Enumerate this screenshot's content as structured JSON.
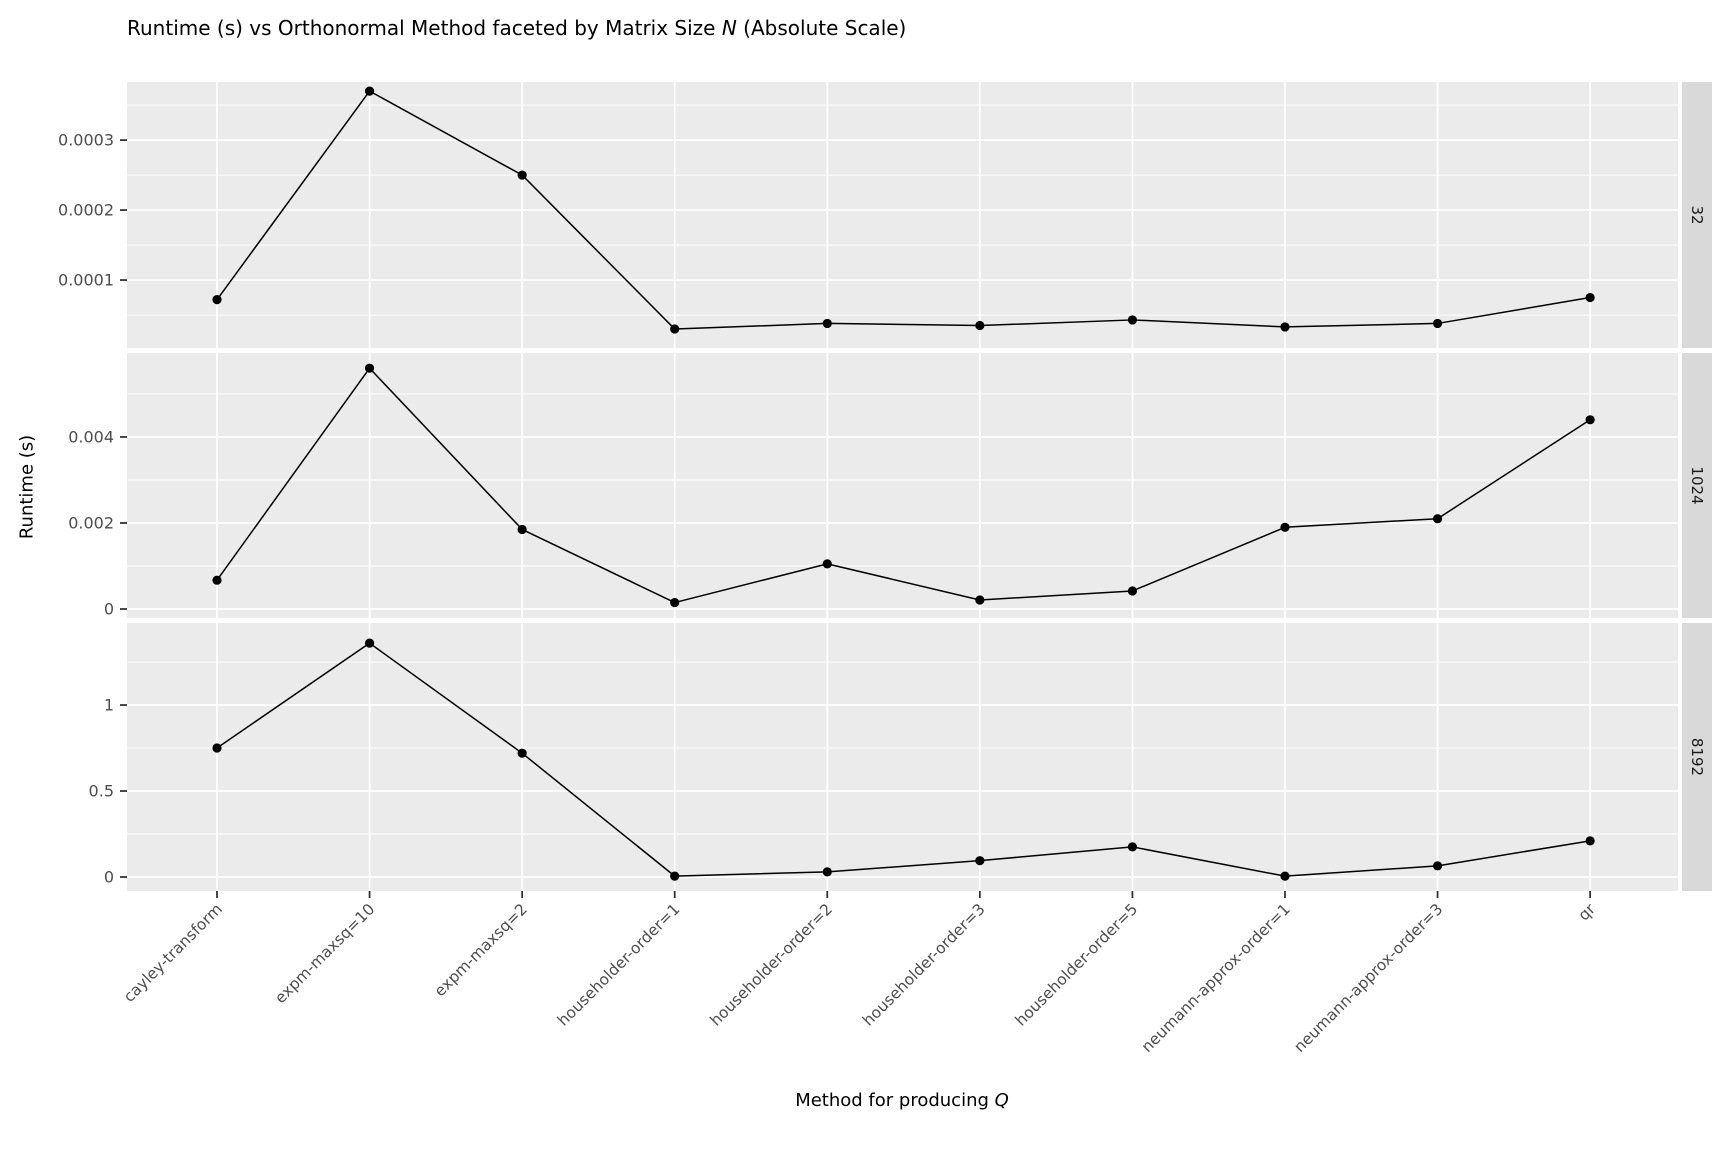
{
  "title": {
    "prefix": "Runtime (s) vs Orthonormal Method faceted by Matrix Size ",
    "italic": "N",
    "suffix": " (Absolute Scale)"
  },
  "axes": {
    "y_label": "Runtime (s)",
    "x_label_prefix": "Method for producing ",
    "x_label_italic": "Q"
  },
  "colors": {
    "panel_background": "#EBEBEB",
    "strip_background": "#D9D9D9",
    "gridline": "#FFFFFF",
    "line": "#000000",
    "point": "#000000",
    "tick_label": "#4D4D4D",
    "tick_mark": "#333333",
    "strip_text": "#1A1A1A",
    "title_text": "#000000"
  },
  "chart_data": {
    "type": "line",
    "title": "Runtime (s) vs Orthonormal Method faceted by Matrix Size N (Absolute Scale)",
    "xlabel": "Method for producing Q",
    "ylabel": "Runtime (s)",
    "legend": false,
    "grid": true,
    "facet_variable": "Matrix Size N",
    "categories": [
      "cayley-transform",
      "expm-maxsq=10",
      "expm-maxsq=2",
      "householder-order=1",
      "householder-order=2",
      "householder-order=3",
      "householder-order=5",
      "neumann-approx-order=1",
      "neumann-approx-order=3",
      "qr"
    ],
    "facets": [
      {
        "label": "32",
        "ylim": [
          2.9e-06,
          0.000383
        ],
        "yticks": [
          0.0001,
          0.0002,
          0.0003
        ],
        "ytick_labels": [
          "0.0001",
          "0.0002",
          "0.0003"
        ],
        "minor_ticks": [
          5e-05,
          0.00015,
          0.00025,
          0.00035
        ],
        "values": [
          7.2e-05,
          0.00037,
          0.00025,
          3e-05,
          3.8e-05,
          3.5e-05,
          4.3e-05,
          3.3e-05,
          3.8e-05,
          7.5e-05
        ]
      },
      {
        "label": "1024",
        "ylim": [
          -0.000209,
          0.005953
        ],
        "yticks": [
          0,
          0.002,
          0.004
        ],
        "ytick_labels": [
          "0",
          "0.002",
          "0.004"
        ],
        "minor_ticks": [
          0.001,
          0.003,
          0.005
        ],
        "values": [
          0.00067,
          0.0056,
          0.00185,
          0.00015,
          0.00105,
          0.00021,
          0.00042,
          0.0019,
          0.0021,
          0.0044
        ]
      },
      {
        "label": "8192",
        "ylim": [
          -0.0814,
          1.477
        ],
        "yticks": [
          0,
          0.5,
          1
        ],
        "ytick_labels": [
          "0",
          "0.5",
          "1"
        ],
        "minor_ticks": [
          0.25,
          0.75,
          1.25
        ],
        "values": [
          0.75,
          1.36,
          0.72,
          0.005,
          0.03,
          0.095,
          0.175,
          0.005,
          0.065,
          0.21
        ]
      }
    ]
  }
}
